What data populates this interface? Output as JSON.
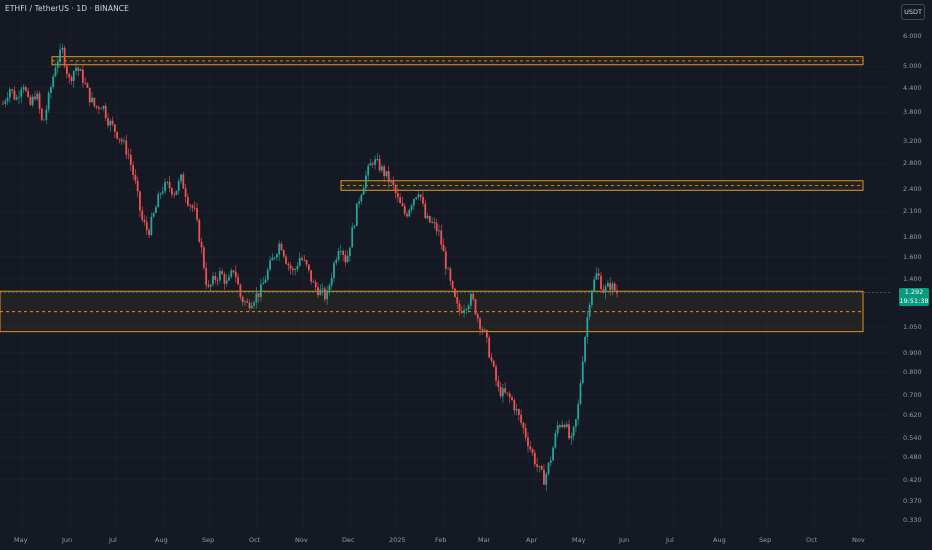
{
  "header": {
    "symbol": "ETHFI / TetherUS · 1D · BINANCE"
  },
  "currency_button": "USDT",
  "price_axis": {
    "ticks": [
      "6.000",
      "5.000",
      "4.400",
      "3.800",
      "3.200",
      "2.800",
      "2.400",
      "2.100",
      "1.800",
      "1.600",
      "1.400",
      "1.050",
      "0.900",
      "0.800",
      "0.700",
      "0.620",
      "0.540",
      "0.480",
      "0.420",
      "0.370",
      "0.330"
    ],
    "last_price": "1.292",
    "countdown": "19:51:38"
  },
  "time_axis": {
    "ticks": [
      "May",
      "Jun",
      "Jul",
      "Aug",
      "Sep",
      "Oct",
      "Nov",
      "Dec",
      "2025",
      "Feb",
      "Mar",
      "Apr",
      "May",
      "Jun",
      "Jul",
      "Aug",
      "Sep",
      "Oct",
      "Nov"
    ]
  },
  "colors": {
    "background": "#151924",
    "up": "#26a69a",
    "down": "#ef5350",
    "zone": "#f7a21b",
    "grid": "#1f2330",
    "price_badge": "#089981"
  },
  "zones": [
    {
      "name": "resistance-zone-top",
      "high": 5.3,
      "low": 5.05,
      "mid": 5.17
    },
    {
      "name": "resistance-zone-mid",
      "high": 2.52,
      "low": 2.38,
      "mid": 2.45
    },
    {
      "name": "support-zone",
      "high": 1.3,
      "low": 1.02,
      "mid": 1.15
    }
  ],
  "chart_data": {
    "type": "candlestick",
    "symbol": "ETHFI / TetherUS",
    "interval": "1D",
    "exchange": "BINANCE",
    "y_scale": "log",
    "ylim": [
      0.31,
      6.8
    ],
    "x": [
      "May",
      "Jun",
      "Jul",
      "Aug",
      "Sep",
      "Oct",
      "Nov",
      "Dec",
      "2025",
      "Feb",
      "Mar",
      "Apr",
      "May",
      "Jun",
      "Jul",
      "Aug",
      "Sep",
      "Oct",
      "Nov"
    ],
    "price_path": [
      [
        0,
        4.0
      ],
      [
        1,
        4.4
      ],
      [
        2,
        4.1
      ],
      [
        3,
        4.6
      ],
      [
        4,
        3.9
      ],
      [
        5,
        4.3
      ],
      [
        6,
        3.5
      ],
      [
        7,
        4.2
      ],
      [
        8,
        5.1
      ],
      [
        9,
        5.5
      ],
      [
        10,
        4.6
      ],
      [
        11,
        5.0
      ],
      [
        12,
        4.7
      ],
      [
        13,
        4.2
      ],
      [
        14,
        3.9
      ],
      [
        15,
        4.0
      ],
      [
        16,
        3.6
      ],
      [
        17,
        3.4
      ],
      [
        18,
        3.2
      ],
      [
        19,
        2.95
      ],
      [
        20,
        2.5
      ],
      [
        21,
        2.0
      ],
      [
        22,
        1.85
      ],
      [
        23,
        2.1
      ],
      [
        24,
        2.4
      ],
      [
        25,
        2.45
      ],
      [
        26,
        2.35
      ],
      [
        27,
        2.55
      ],
      [
        28,
        2.25
      ],
      [
        29,
        2.1
      ],
      [
        30,
        1.7
      ],
      [
        31,
        1.3
      ],
      [
        32,
        1.4
      ],
      [
        33,
        1.45
      ],
      [
        34,
        1.35
      ],
      [
        35,
        1.5
      ],
      [
        36,
        1.25
      ],
      [
        37,
        1.2
      ],
      [
        38,
        1.25
      ],
      [
        39,
        1.3
      ],
      [
        40,
        1.45
      ],
      [
        41,
        1.6
      ],
      [
        42,
        1.75
      ],
      [
        43,
        1.55
      ],
      [
        44,
        1.45
      ],
      [
        45,
        1.6
      ],
      [
        46,
        1.5
      ],
      [
        47,
        1.35
      ],
      [
        48,
        1.3
      ],
      [
        49,
        1.25
      ],
      [
        50,
        1.5
      ],
      [
        51,
        1.75
      ],
      [
        52,
        1.55
      ],
      [
        53,
        1.9
      ],
      [
        54,
        2.3
      ],
      [
        55,
        2.6
      ],
      [
        56,
        2.85
      ],
      [
        57,
        2.75
      ],
      [
        58,
        2.6
      ],
      [
        59,
        2.45
      ],
      [
        60,
        2.2
      ],
      [
        61,
        2.05
      ],
      [
        62,
        2.25
      ],
      [
        63,
        2.4
      ],
      [
        64,
        2.0
      ],
      [
        65,
        1.95
      ],
      [
        66,
        1.85
      ],
      [
        67,
        1.55
      ],
      [
        68,
        1.3
      ],
      [
        69,
        1.15
      ],
      [
        70,
        1.2
      ],
      [
        71,
        1.25
      ],
      [
        72,
        1.1
      ],
      [
        73,
        1.0
      ],
      [
        74,
        0.85
      ],
      [
        75,
        0.72
      ],
      [
        76,
        0.7
      ],
      [
        77,
        0.68
      ],
      [
        78,
        0.62
      ],
      [
        79,
        0.56
      ],
      [
        80,
        0.5
      ],
      [
        81,
        0.45
      ],
      [
        82,
        0.42
      ],
      [
        83,
        0.48
      ],
      [
        84,
        0.58
      ],
      [
        85,
        0.6
      ],
      [
        86,
        0.52
      ],
      [
        87,
        0.62
      ],
      [
        88,
        0.95
      ],
      [
        89,
        1.3
      ],
      [
        90,
        1.45
      ],
      [
        91,
        1.3
      ],
      [
        92,
        1.35
      ],
      [
        93,
        1.29
      ]
    ],
    "last_price": 1.292,
    "annotations": [
      "resistance zone 5.05–5.30",
      "resistance zone 2.38–2.52",
      "support zone 1.02–1.30"
    ]
  }
}
